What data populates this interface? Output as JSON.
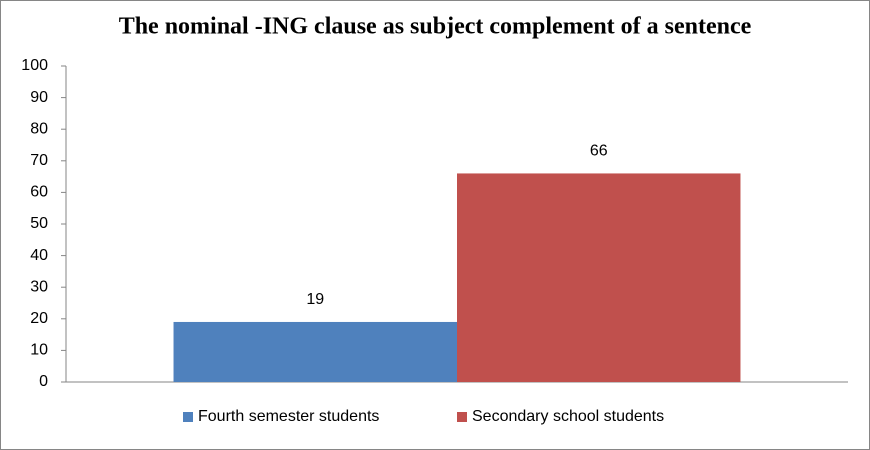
{
  "chart_data": {
    "type": "bar",
    "title": "The nominal -ING clause as subject complement of a sentence",
    "categories": [
      null
    ],
    "series": [
      {
        "name": "Fourth semester students",
        "color": "#4f81bd",
        "values": [
          19
        ]
      },
      {
        "name": "Secondary school students",
        "color": "#c0504d",
        "values": [
          66
        ]
      }
    ],
    "ylim": [
      0,
      100
    ],
    "yticks": [
      0,
      10,
      20,
      30,
      40,
      50,
      60,
      70,
      80,
      90,
      100
    ],
    "grid": false,
    "legend": "bottom",
    "data_labels": true
  }
}
